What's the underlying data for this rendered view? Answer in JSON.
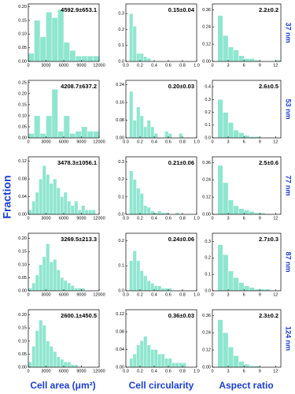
{
  "figure": {
    "y_label": "Fraction",
    "column_labels": [
      "Cell area (μm²)",
      "Cell circularity",
      "Aspect ratio"
    ],
    "row_labels": [
      "37 nm",
      "53 nm",
      "77 nm",
      "87 nm",
      "124 nm"
    ]
  },
  "chart_data": [
    {
      "type": "histogram",
      "annotation": "4592.9±653.1",
      "color": "#8fe6cf",
      "bins": [
        0,
        1000,
        2000,
        3000,
        4000,
        5000,
        6000,
        7000,
        8000,
        9000,
        10000,
        11000,
        12000
      ],
      "values": [
        0.03,
        0.15,
        0.09,
        0.18,
        0.16,
        0.19,
        0.07,
        0.04,
        0.02,
        0.02,
        0.02,
        0.02
      ],
      "xlim": [
        0,
        12000
      ],
      "xticks": [
        0,
        3000,
        6000,
        9000,
        12000
      ],
      "ylim": [
        0,
        0.21
      ],
      "yticks": [
        {
          "value": 0,
          "label": "0.00"
        },
        0.05,
        {
          "value": 0.1,
          "label": "0.10"
        },
        0.15,
        {
          "value": 0.2,
          "label": "0.20"
        }
      ]
    },
    {
      "type": "histogram",
      "annotation": "0.15±0.04",
      "color": "#8fe6cf",
      "bins": [
        0,
        0.05,
        0.1,
        0.15,
        0.2,
        0.25,
        0.3,
        0.35,
        0.4,
        0.45,
        0.5,
        0.55,
        0.6,
        0.65,
        0.7,
        0.75,
        0.8,
        0.85,
        0.9,
        0.95,
        1
      ],
      "values": [
        0,
        0.3,
        0.22,
        0.05,
        0.05,
        0.03,
        0.02,
        0,
        0,
        0,
        0,
        0,
        0,
        0,
        0,
        0,
        0,
        0,
        0,
        0
      ],
      "xlim": [
        0,
        1
      ],
      "xticks": [
        {
          "value": 0,
          "label": "0.0"
        },
        0.2,
        0.4,
        0.6,
        0.8,
        {
          "value": 1,
          "label": "1.0"
        }
      ],
      "ylim": [
        0,
        0.36
      ],
      "yticks": [
        {
          "value": 0,
          "label": "0.0"
        },
        0.1,
        0.2,
        0.3
      ]
    },
    {
      "type": "histogram",
      "annotation": "2.2±0.2",
      "color": "#8fe6cf",
      "bins": [
        0,
        1,
        2,
        3,
        4,
        5,
        6,
        7,
        8,
        9,
        10,
        11,
        12,
        13
      ],
      "values": [
        0,
        0.32,
        0.18,
        0.1,
        0.08,
        0.04,
        0.02,
        0.02,
        0.01,
        0,
        0,
        0,
        0.01
      ],
      "xlim": [
        0,
        13
      ],
      "xticks": [
        0,
        3,
        6,
        9,
        12
      ],
      "ylim": [
        0,
        0.4
      ],
      "yticks": [
        {
          "value": 0,
          "label": "0.00"
        },
        0.12,
        0.24,
        0.36
      ]
    },
    {
      "type": "histogram",
      "annotation": "4208.7±637.2",
      "color": "#8fe6cf",
      "bins": [
        0,
        1000,
        2000,
        3000,
        4000,
        5000,
        6000,
        7000,
        8000,
        9000,
        10000,
        11000,
        12000
      ],
      "values": [
        0.02,
        0.1,
        0.02,
        0.1,
        0.22,
        0.03,
        0.1,
        0.02,
        0.03,
        0.05,
        0.03,
        0.03
      ],
      "xlim": [
        0,
        12000
      ],
      "xticks": [
        0,
        3000,
        6000,
        9000,
        12000
      ],
      "ylim": [
        0,
        0.26
      ],
      "yticks": [
        {
          "value": 0,
          "label": "0.00"
        },
        0.05,
        {
          "value": 0.1,
          "label": "0.10"
        },
        0.15,
        {
          "value": 0.2,
          "label": "0.20"
        },
        0.25
      ]
    },
    {
      "type": "histogram",
      "annotation": "0.20±0.03",
      "color": "#8fe6cf",
      "bins": [
        0,
        0.05,
        0.1,
        0.15,
        0.2,
        0.25,
        0.3,
        0.35,
        0.4,
        0.45,
        0.5,
        0.55,
        0.6,
        0.65,
        0.7,
        0.75,
        0.8,
        0.85,
        0.9,
        0.95,
        1
      ],
      "values": [
        0,
        0.21,
        0.08,
        0.14,
        0.1,
        0.05,
        0.08,
        0.05,
        0.02,
        0,
        0,
        0.03,
        0.02,
        0,
        0,
        0.02,
        0,
        0,
        0,
        0
      ],
      "xlim": [
        0,
        1
      ],
      "xticks": [
        {
          "value": 0,
          "label": "0.0"
        },
        0.2,
        0.4,
        0.6,
        0.8,
        {
          "value": 1,
          "label": "1.0"
        }
      ],
      "ylim": [
        0,
        0.26
      ],
      "yticks": [
        {
          "value": 0,
          "label": "0.00"
        },
        0.08,
        0.16,
        0.24
      ]
    },
    {
      "type": "histogram",
      "annotation": "2.6±0.5",
      "color": "#8fe6cf",
      "bins": [
        0,
        1,
        2,
        3,
        4,
        5,
        6,
        7,
        8,
        9,
        10,
        11,
        12,
        13
      ],
      "values": [
        0,
        0.3,
        0.2,
        0.12,
        0.06,
        0.04,
        0.02,
        0.01,
        0.01,
        0,
        0,
        0,
        0
      ],
      "xlim": [
        0,
        13
      ],
      "xticks": [
        0,
        3,
        6,
        9,
        12
      ],
      "ylim": [
        0,
        0.45
      ],
      "yticks": [
        {
          "value": 0,
          "label": "0.0"
        },
        0.1,
        0.2,
        0.3,
        0.4
      ]
    },
    {
      "type": "histogram",
      "annotation": "3478.3±1056.1",
      "color": "#8fe6cf",
      "bins": [
        0,
        600,
        1200,
        1800,
        2400,
        3000,
        3600,
        4200,
        4800,
        5400,
        6000,
        6600,
        7200,
        7800,
        8400,
        9000,
        9600,
        10200,
        10800,
        11400,
        12000
      ],
      "values": [
        0.01,
        0.03,
        0.05,
        0.08,
        0.11,
        0.09,
        0.07,
        0.08,
        0.06,
        0.04,
        0.05,
        0.03,
        0.02,
        0.03,
        0.01,
        0.02,
        0.01,
        0.01,
        0.01,
        0
      ],
      "xlim": [
        0,
        12000
      ],
      "xticks": [
        0,
        3000,
        6000,
        9000,
        12000
      ],
      "ylim": [
        0,
        0.13
      ],
      "yticks": [
        {
          "value": 0,
          "label": "0.00"
        },
        0.04,
        0.08,
        0.12
      ]
    },
    {
      "type": "histogram",
      "annotation": "0.21±0.06",
      "color": "#8fe6cf",
      "bins": [
        0,
        0.05,
        0.1,
        0.15,
        0.2,
        0.25,
        0.3,
        0.35,
        0.4,
        0.45,
        0.5,
        0.55,
        0.6,
        0.65,
        0.7,
        0.75,
        0.8,
        0.85,
        0.9,
        0.95,
        1
      ],
      "values": [
        0,
        0.25,
        0.2,
        0.15,
        0.12,
        0.05,
        0.04,
        0.02,
        0.01,
        0.02,
        0.01,
        0.01,
        0,
        0,
        0.01,
        0,
        0,
        0,
        0,
        0
      ],
      "xlim": [
        0,
        1
      ],
      "xticks": [
        {
          "value": 0,
          "label": "0.0"
        },
        0.2,
        0.4,
        0.6,
        0.8,
        {
          "value": 1,
          "label": "1.0"
        }
      ],
      "ylim": [
        0,
        0.33
      ],
      "yticks": [
        {
          "value": 0,
          "label": "0.0"
        },
        0.1,
        0.2,
        0.3
      ]
    },
    {
      "type": "histogram",
      "annotation": "2.5±0.6",
      "color": "#8fe6cf",
      "bins": [
        0,
        1,
        2,
        3,
        4,
        5,
        6,
        7,
        8,
        9,
        10,
        11,
        12,
        13
      ],
      "values": [
        0,
        0.34,
        0.22,
        0.1,
        0.06,
        0.04,
        0.03,
        0.02,
        0.01,
        0.01,
        0,
        0,
        0
      ],
      "xlim": [
        0,
        13
      ],
      "xticks": [
        0,
        3,
        6,
        9,
        12
      ],
      "ylim": [
        0,
        0.4
      ],
      "yticks": [
        {
          "value": 0,
          "label": "0.00"
        },
        0.12,
        0.24,
        0.36
      ]
    },
    {
      "type": "histogram",
      "annotation": "3269.5±213.3",
      "color": "#8fe6cf",
      "bins": [
        0,
        600,
        1200,
        1800,
        2400,
        3000,
        3600,
        4200,
        4800,
        5400,
        6000,
        6600,
        7200,
        7800,
        8400,
        9000,
        9600,
        10200,
        10800,
        11400,
        12000
      ],
      "values": [
        0.01,
        0.03,
        0.06,
        0.1,
        0.13,
        0.18,
        0.11,
        0.12,
        0.08,
        0.05,
        0.04,
        0.03,
        0.02,
        0.01,
        0.01,
        0.01,
        0,
        0,
        0,
        0
      ],
      "xlim": [
        0,
        12000
      ],
      "xticks": [
        0,
        3000,
        6000,
        9000,
        12000
      ],
      "ylim": [
        0,
        0.22
      ],
      "yticks": [
        {
          "value": 0,
          "label": "0.00"
        },
        0.05,
        {
          "value": 0.1,
          "label": "0.10"
        },
        0.15,
        {
          "value": 0.2,
          "label": "0.20"
        }
      ]
    },
    {
      "type": "histogram",
      "annotation": "0.24±0.06",
      "color": "#8fe6cf",
      "bins": [
        0,
        0.05,
        0.1,
        0.15,
        0.2,
        0.25,
        0.3,
        0.35,
        0.4,
        0.45,
        0.5,
        0.55,
        0.6,
        0.65,
        0.7,
        0.75,
        0.8,
        0.85,
        0.9,
        0.95,
        1
      ],
      "values": [
        0,
        0.12,
        0.16,
        0.12,
        0.08,
        0.06,
        0.04,
        0.03,
        0.02,
        0.02,
        0.01,
        0.01,
        0.01,
        0,
        0,
        0,
        0,
        0,
        0,
        0
      ],
      "xlim": [
        0,
        1
      ],
      "xticks": [
        {
          "value": 0,
          "label": "0.0"
        },
        0.2,
        0.4,
        0.6,
        0.8,
        {
          "value": 1,
          "label": "1.0"
        }
      ],
      "ylim": [
        0,
        0.23
      ],
      "yticks": [
        {
          "value": 0,
          "label": "0.0"
        },
        0.1,
        0.2
      ]
    },
    {
      "type": "histogram",
      "annotation": "2.7±0.3",
      "color": "#8fe6cf",
      "bins": [
        0,
        1,
        2,
        3,
        4,
        5,
        6,
        7,
        8,
        9,
        10,
        11,
        12,
        13
      ],
      "values": [
        0,
        0.28,
        0.22,
        0.12,
        0.08,
        0.05,
        0.03,
        0.02,
        0.01,
        0.01,
        0.01,
        0,
        0
      ],
      "xlim": [
        0,
        13
      ],
      "xticks": [
        0,
        3,
        6,
        9,
        12
      ],
      "ylim": [
        0,
        0.35
      ],
      "yticks": [
        {
          "value": 0,
          "label": "0.0"
        },
        0.1,
        0.2,
        0.3
      ]
    },
    {
      "type": "histogram",
      "annotation": "2600.1±450.5",
      "color": "#8fe6cf",
      "bins": [
        0,
        600,
        1200,
        1800,
        2400,
        3000,
        3600,
        4200,
        4800,
        5400,
        6000,
        6600,
        7200,
        7800,
        8400,
        9000,
        9600,
        10200,
        10800,
        11400,
        12000
      ],
      "values": [
        0.02,
        0.08,
        0.14,
        0.18,
        0.16,
        0.1,
        0.08,
        0.06,
        0.04,
        0.03,
        0.02,
        0.02,
        0.01,
        0.01,
        0,
        0,
        0,
        0,
        0,
        0
      ],
      "xlim": [
        0,
        12000
      ],
      "xticks": [
        0,
        3000,
        6000,
        9000,
        12000
      ],
      "ylim": [
        0,
        0.22
      ],
      "yticks": [
        {
          "value": 0,
          "label": "0.00"
        },
        0.05,
        {
          "value": 0.1,
          "label": "0.10"
        },
        0.15,
        {
          "value": 0.2,
          "label": "0.20"
        }
      ]
    },
    {
      "type": "histogram",
      "annotation": "0.36±0.03",
      "color": "#8fe6cf",
      "bins": [
        0,
        0.05,
        0.1,
        0.15,
        0.2,
        0.25,
        0.3,
        0.35,
        0.4,
        0.45,
        0.5,
        0.55,
        0.6,
        0.65,
        0.7,
        0.75,
        0.8,
        0.85,
        0.9,
        0.95,
        1
      ],
      "values": [
        0,
        0.02,
        0.03,
        0.05,
        0.06,
        0.07,
        0.05,
        0.04,
        0.04,
        0.03,
        0.03,
        0.02,
        0.02,
        0.01,
        0.01,
        0.01,
        0.01,
        0,
        0,
        0
      ],
      "xlim": [
        0,
        1
      ],
      "xticks": [
        {
          "value": 0,
          "label": "0.0"
        },
        0.2,
        0.4,
        0.6,
        0.8,
        {
          "value": 1,
          "label": "1.0"
        }
      ],
      "ylim": [
        0,
        0.13
      ],
      "yticks": [
        {
          "value": 0,
          "label": "0.00"
        },
        0.04,
        0.08,
        0.12
      ]
    },
    {
      "type": "histogram",
      "annotation": "2.3±0.2",
      "color": "#8fe6cf",
      "bins": [
        0,
        1,
        2,
        3,
        4,
        5,
        6,
        7,
        8,
        9,
        10,
        11,
        12,
        13
      ],
      "values": [
        0,
        0.33,
        0.24,
        0.14,
        0.08,
        0.04,
        0.02,
        0.01,
        0.01,
        0,
        0,
        0,
        0
      ],
      "xlim": [
        0,
        13
      ],
      "xticks": [
        0,
        3,
        6,
        9,
        12
      ],
      "ylim": [
        0,
        0.4
      ],
      "yticks": [
        {
          "value": 0,
          "label": "0.00"
        },
        0.12,
        0.24,
        0.36
      ]
    }
  ]
}
